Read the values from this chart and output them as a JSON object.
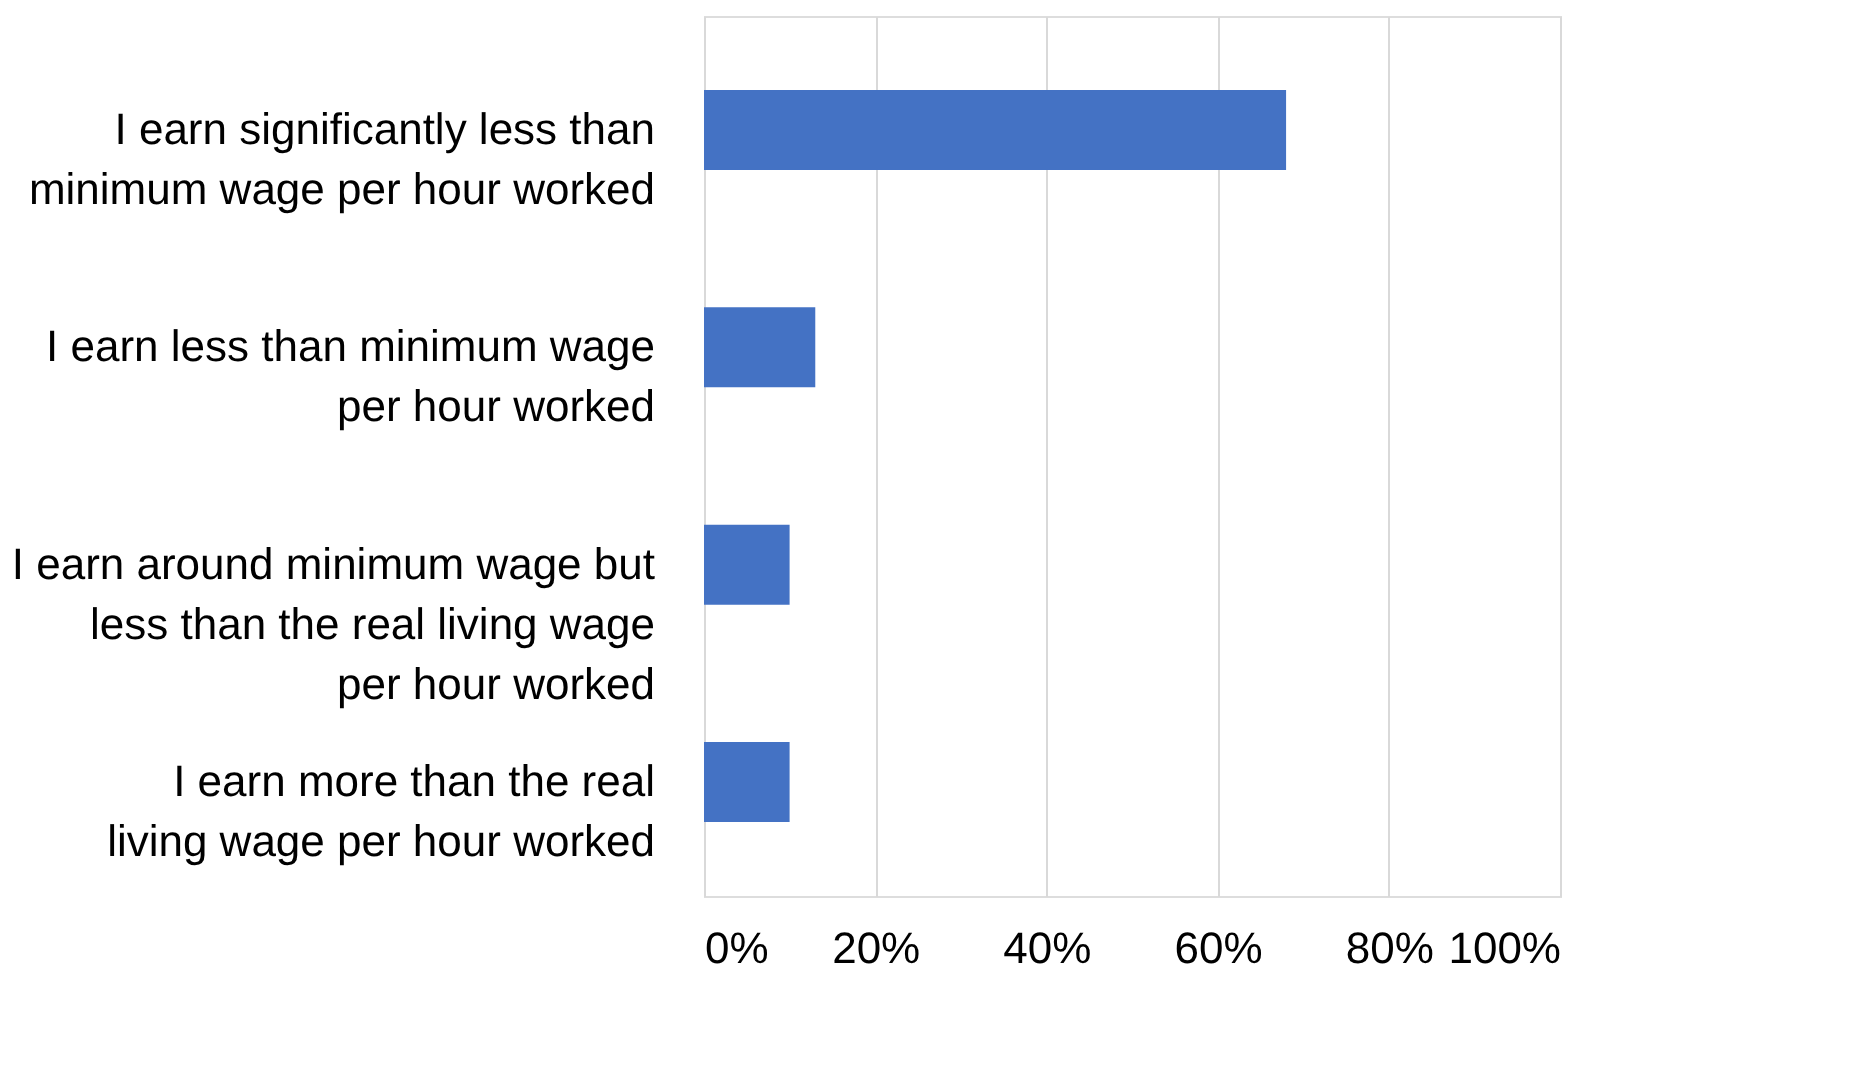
{
  "chart_data": {
    "type": "bar",
    "orientation": "horizontal",
    "categories": [
      "I earn significantly less than minimum wage per hour worked",
      "I earn less than minimum wage per hour worked",
      "I earn around minimum wage but less than the real living wage per hour worked",
      "I earn more than the real living wage per hour worked"
    ],
    "values": [
      68,
      13,
      10,
      10
    ],
    "color": "#4472c4",
    "xlim": [
      0,
      100
    ],
    "xticks": [
      {
        "value": 0,
        "label": "0%"
      },
      {
        "value": 20,
        "label": "20%"
      },
      {
        "value": 40,
        "label": "40%"
      },
      {
        "value": 60,
        "label": "60%"
      },
      {
        "value": 80,
        "label": "80%"
      },
      {
        "value": 100,
        "label": "100%"
      }
    ],
    "grid": "x"
  }
}
